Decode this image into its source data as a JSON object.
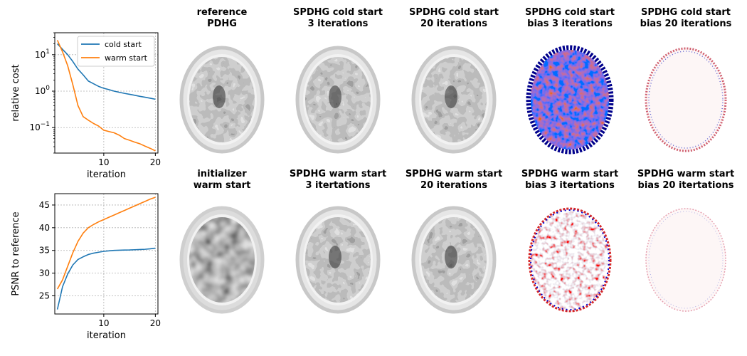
{
  "colors": {
    "cold": "#1f77b4",
    "warm": "#ff7f0e",
    "grid": "#b0b0b0"
  },
  "chart_data": [
    {
      "type": "line",
      "yscale": "log",
      "xlabel": "iteration",
      "ylabel": "relative cost",
      "xlim": [
        0.5,
        20.5
      ],
      "ylim": [
        0.02,
        40
      ],
      "xticks": [
        10,
        20
      ],
      "yticks": [
        {
          "value": 0.1,
          "label": "10"
        },
        {
          "value": 1,
          "label": "10"
        },
        {
          "value": 10,
          "label": "10"
        }
      ],
      "ytick_exponents": [
        "−1",
        "0",
        "1"
      ],
      "grid": true,
      "legend_position": "top-right",
      "x": [
        1,
        2,
        3,
        4,
        5,
        6,
        7,
        8,
        9,
        10,
        11,
        12,
        13,
        14,
        15,
        16,
        17,
        18,
        19,
        20
      ],
      "series": [
        {
          "name": "cold start",
          "values": [
            20,
            14,
            10,
            6.5,
            4.0,
            2.8,
            1.9,
            1.6,
            1.35,
            1.2,
            1.1,
            1.0,
            0.93,
            0.87,
            0.82,
            0.77,
            0.72,
            0.68,
            0.64,
            0.6
          ]
        },
        {
          "name": "warm start",
          "values": [
            25,
            12,
            5,
            1.5,
            0.4,
            0.2,
            0.16,
            0.13,
            0.11,
            0.085,
            0.078,
            0.072,
            0.062,
            0.05,
            0.045,
            0.04,
            0.036,
            0.031,
            0.027,
            0.023
          ]
        }
      ]
    },
    {
      "type": "line",
      "xlabel": "iteration",
      "ylabel": "PSNR to reference",
      "xlim": [
        0.5,
        20.5
      ],
      "ylim": [
        21,
        47.5
      ],
      "xticks": [
        10,
        20
      ],
      "yticks": [
        25,
        30,
        35,
        40,
        45
      ],
      "grid": true,
      "x": [
        1,
        2,
        3,
        4,
        5,
        6,
        7,
        8,
        9,
        10,
        11,
        12,
        13,
        14,
        15,
        16,
        17,
        18,
        19,
        20
      ],
      "series": [
        {
          "name": "cold start",
          "values": [
            22.0,
            27.0,
            29.8,
            31.8,
            33.0,
            33.6,
            34.1,
            34.4,
            34.6,
            34.8,
            34.9,
            35.0,
            35.05,
            35.08,
            35.1,
            35.15,
            35.2,
            35.25,
            35.35,
            35.5
          ]
        },
        {
          "name": "warm start",
          "values": [
            26.5,
            28.5,
            31.5,
            34.5,
            37.0,
            38.8,
            40.0,
            40.7,
            41.3,
            41.8,
            42.3,
            42.8,
            43.3,
            43.8,
            44.3,
            44.8,
            45.3,
            45.8,
            46.3,
            46.7
          ]
        }
      ]
    }
  ],
  "panels": [
    {
      "title": [
        "reference",
        "PDHG"
      ],
      "kind": "gray"
    },
    {
      "title": [
        "SPDHG cold start",
        "3 iterations"
      ],
      "kind": "gray"
    },
    {
      "title": [
        "SPDHG cold start",
        "20 iterations"
      ],
      "kind": "gray"
    },
    {
      "title": [
        "SPDHG cold start",
        "bias 3 iterations"
      ],
      "kind": "bias-strong"
    },
    {
      "title": [
        "SPDHG cold start",
        "bias 20 iterations"
      ],
      "kind": "bias-weak"
    },
    {
      "title": [
        "initializer",
        "warm start"
      ],
      "kind": "blur"
    },
    {
      "title": [
        "SPDHG warm start",
        "3 itertations"
      ],
      "kind": "gray"
    },
    {
      "title": [
        "SPDHG warm start",
        "20 iterations"
      ],
      "kind": "gray"
    },
    {
      "title": [
        "SPDHG warm start",
        "bias 3 itertations"
      ],
      "kind": "bias-mid"
    },
    {
      "title": [
        "SPDHG warm start",
        "bias 20 itertations"
      ],
      "kind": "bias-faint"
    }
  ]
}
